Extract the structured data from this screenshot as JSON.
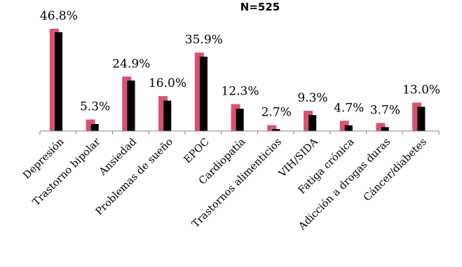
{
  "chart_data": {
    "type": "bar",
    "title": "N=525",
    "xlabel": "",
    "ylabel": "",
    "ylim": [
      0,
      50
    ],
    "grid": false,
    "legend": "none",
    "categories": [
      "Depresión",
      "Trastorno bipolar",
      "Ansiedad",
      "Problemas de sueño",
      "EPOC",
      "Cardiopatía",
      "Trastornos alimenticios",
      "VIH/SIDA",
      "Fatiga crónica",
      "Adicción a drogas duras",
      "Cáncer/diabetes"
    ],
    "series": [
      {
        "values": [
          46.8,
          5.3,
          24.9,
          16.0,
          35.9,
          12.3,
          2.7,
          9.3,
          4.7,
          3.7,
          13.0
        ],
        "color": "#d9536f"
      },
      {
        "values": [
          45.2,
          3.2,
          23.1,
          13.9,
          34.0,
          10.2,
          0.9,
          7.3,
          2.6,
          1.8,
          11.1
        ],
        "color": "#000000"
      }
    ],
    "data_labels": [
      "46.8%",
      "5.3%",
      "24.9%",
      "16.0%",
      "35.9%",
      "12.3%",
      "2.7%",
      "9.3%",
      "4.7%",
      "3.7%",
      "13.0%"
    ]
  }
}
